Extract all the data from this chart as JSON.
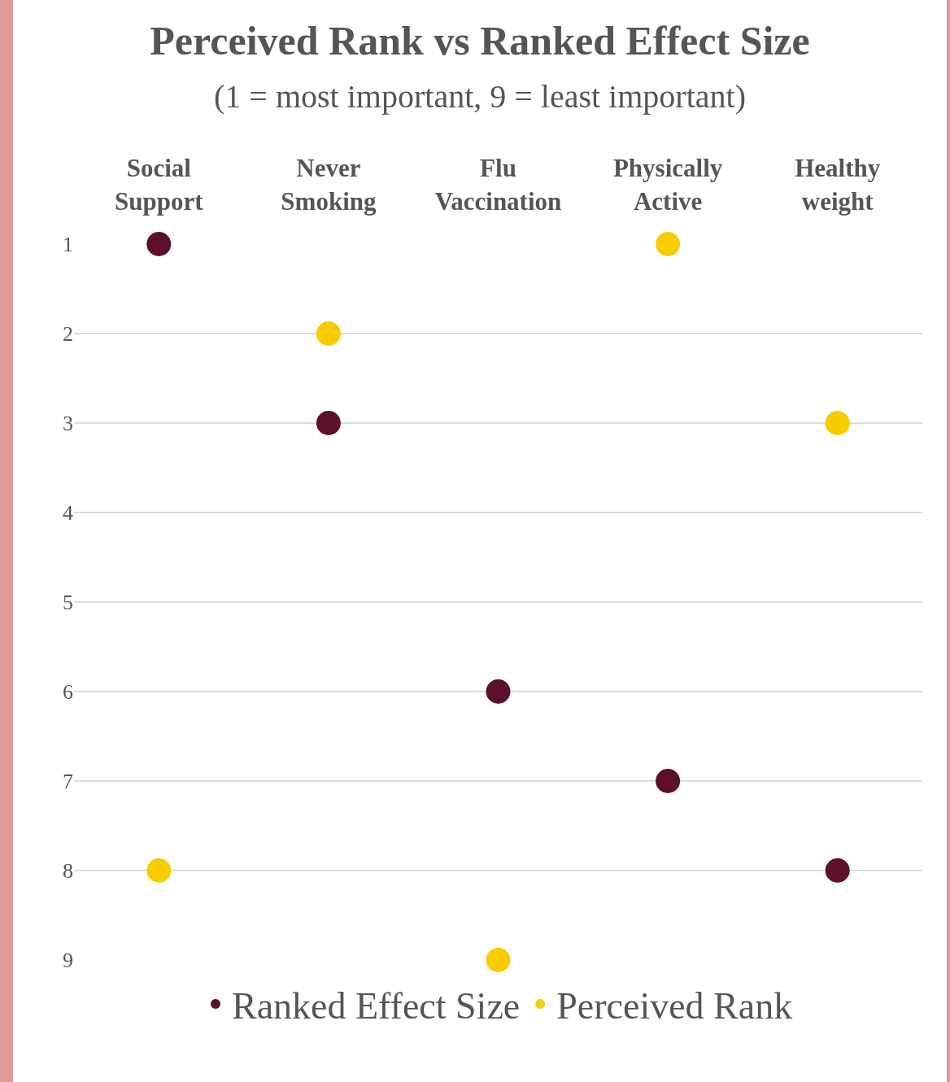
{
  "chart_data": {
    "type": "scatter",
    "title": "Perceived Rank vs Ranked Effect Size",
    "subtitle": "(1 = most important, 9 = least important)",
    "categories": [
      "Social Support",
      "Never Smoking",
      "Flu Vaccination",
      "Physically Active",
      "Healthy weight"
    ],
    "series": [
      {
        "name": "Ranked Effect Size",
        "color": "#5c0f2e",
        "values": [
          1,
          3,
          6,
          7,
          8
        ]
      },
      {
        "name": "Perceived Rank",
        "color": "#f7cd00",
        "values": [
          8,
          2,
          9,
          1,
          3
        ]
      }
    ],
    "ylim": [
      9,
      1
    ],
    "yticks": [
      1,
      2,
      3,
      4,
      5,
      6,
      7,
      8,
      9
    ],
    "grid": "y",
    "legend": "bottom",
    "marker": "circle"
  }
}
